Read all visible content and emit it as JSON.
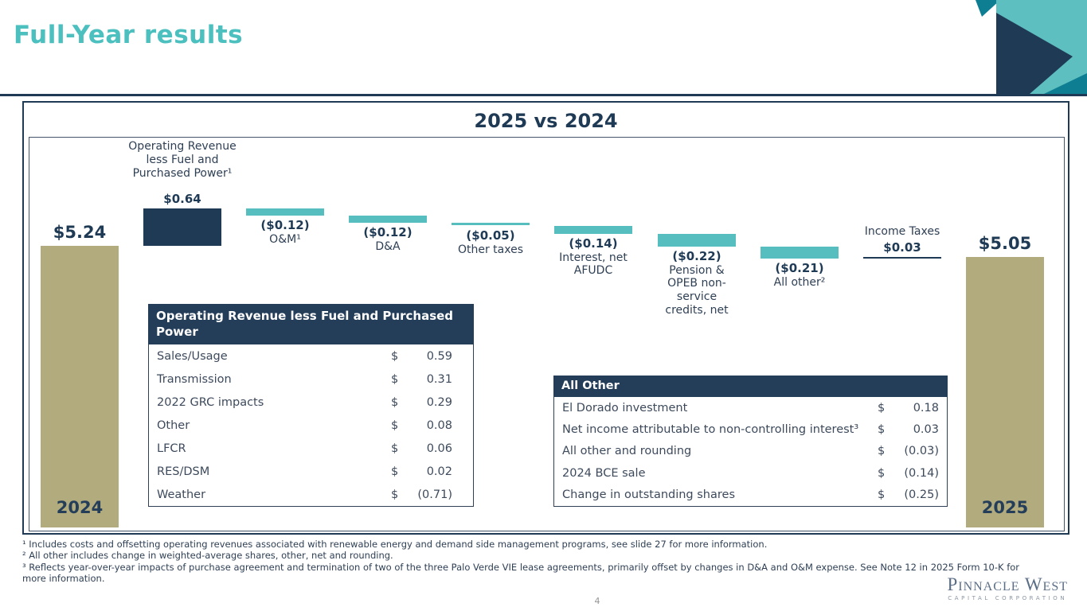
{
  "slide": {
    "title": "Full-Year results",
    "page_number": "4",
    "footnotes": [
      "¹ Includes costs and offsetting operating revenues associated with renewable energy and demand side management programs, see slide 27 for more information.",
      "² All other includes change in weighted-average shares, other, net and rounding.",
      "³ Reflects year-over-year impacts of purchase agreement and termination of two of the three Palo Verde VIE lease agreements, primarily offset by changes in D&A and O&M expense. See Note 12 in 2025 Form 10-K for more information."
    ],
    "logo": {
      "line1": "Pinnacle West",
      "line2": "CAPITAL CORPORATION"
    }
  },
  "colors": {
    "accent_teal": "#4CBFBF",
    "bar_teal": "#56BEBE",
    "navy": "#1F3A55",
    "olive": "#B2AB7D",
    "corner_dark_teal": "#0E7E93",
    "table_header_bg": "#243E5A"
  },
  "chart_data": {
    "type": "waterfall",
    "title": "2025 vs 2024",
    "units": "EPS, dollars per share",
    "start": {
      "label": "2024",
      "value": 5.24,
      "value_label": "$5.24"
    },
    "end": {
      "label": "2025",
      "value": 5.05,
      "value_label": "$5.05"
    },
    "steps": [
      {
        "name": "Operating Revenue less Fuel and Purchased Power¹",
        "value": 0.64,
        "value_label": "$0.64"
      },
      {
        "name": "O&M¹",
        "value": -0.12,
        "value_label": "($0.12)"
      },
      {
        "name": "D&A",
        "value": -0.12,
        "value_label": "($0.12)"
      },
      {
        "name": "Other taxes",
        "value": -0.05,
        "value_label": "($0.05)"
      },
      {
        "name": "Interest, net AFUDC",
        "value": -0.14,
        "value_label": "($0.14)"
      },
      {
        "name": "Pension & OPEB non-service credits, net",
        "value": -0.22,
        "value_label": "($0.22)"
      },
      {
        "name": "All other²",
        "value": -0.21,
        "value_label": "($0.21)"
      },
      {
        "name": "Income Taxes",
        "value": 0.03,
        "value_label": "$0.03"
      }
    ]
  },
  "tables": [
    {
      "header": "Operating Revenue less Fuel and Purchased Power",
      "rows": [
        {
          "label": "Sales/Usage",
          "cur": "$",
          "value": "0.59"
        },
        {
          "label": "Transmission",
          "cur": "$",
          "value": "0.31"
        },
        {
          "label": "2022 GRC impacts",
          "cur": "$",
          "value": "0.29"
        },
        {
          "label": "Other",
          "cur": "$",
          "value": "0.08"
        },
        {
          "label": "LFCR",
          "cur": "$",
          "value": "0.06"
        },
        {
          "label": "RES/DSM",
          "cur": "$",
          "value": "0.02"
        },
        {
          "label": "Weather",
          "cur": "$",
          "value": "(0.71)"
        }
      ]
    },
    {
      "header": "All Other",
      "rows": [
        {
          "label": "El Dorado investment",
          "cur": "$",
          "value": "0.18"
        },
        {
          "label": "Net income attributable to non-controlling interest³",
          "cur": "$",
          "value": "0.03"
        },
        {
          "label": "All other and rounding",
          "cur": "$",
          "value": "(0.03)"
        },
        {
          "label": "2024 BCE sale",
          "cur": "$",
          "value": "(0.14)"
        },
        {
          "label": "Change in outstanding shares",
          "cur": "$",
          "value": "(0.25)"
        }
      ]
    }
  ]
}
